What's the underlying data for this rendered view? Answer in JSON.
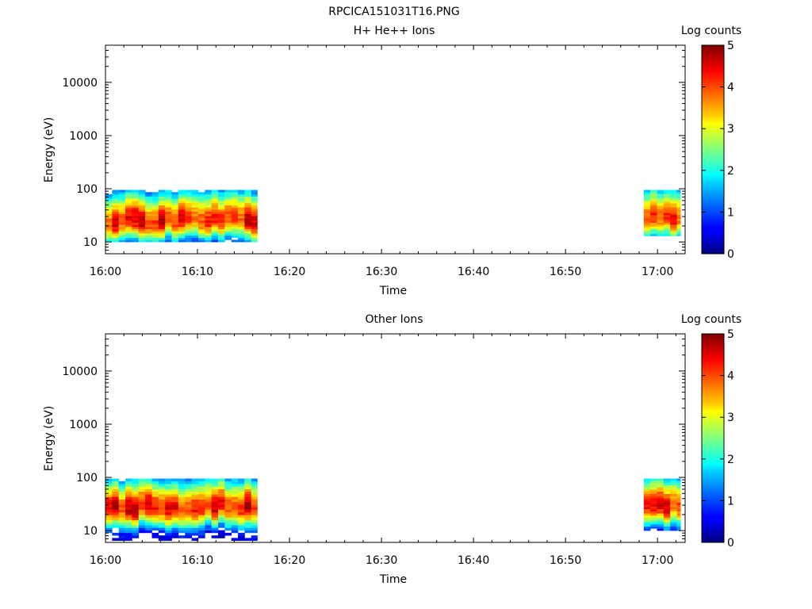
{
  "figure_title": "RPCICA151031T16.PNG",
  "chart_data": [
    {
      "type": "heatmap",
      "title": "H+ He++ Ions",
      "xlabel": "Time",
      "ylabel": "Energy (eV)",
      "y_scale": "log",
      "ylim": [
        6,
        50000
      ],
      "xlim": [
        "16:00",
        "17:03"
      ],
      "x_ticks": [
        "16:00",
        "16:10",
        "16:20",
        "16:30",
        "16:40",
        "16:50",
        "17:00"
      ],
      "y_ticks": [
        "10",
        "100",
        "1000",
        "10000"
      ],
      "colorbar": {
        "label": "Log counts",
        "range": [
          0,
          5
        ],
        "ticks": [
          "0",
          "1",
          "2",
          "3",
          "4",
          "5"
        ]
      },
      "grid": false,
      "data_segments": [
        {
          "start": "16:00",
          "end": "16:16.5",
          "energy_range_eV": [
            10,
            95
          ],
          "peak_energy_eV": 25,
          "peak_log_counts": 4.5
        },
        {
          "start": "16:58.5",
          "end": "17:02.5",
          "energy_range_eV": [
            13,
            95
          ],
          "peak_energy_eV": 27,
          "peak_log_counts": 4.3
        }
      ]
    },
    {
      "type": "heatmap",
      "title": "Other Ions",
      "xlabel": "Time",
      "ylabel": "Energy (eV)",
      "y_scale": "log",
      "ylim": [
        6,
        50000
      ],
      "xlim": [
        "16:00",
        "17:03"
      ],
      "x_ticks": [
        "16:00",
        "16:10",
        "16:20",
        "16:30",
        "16:40",
        "16:50",
        "17:00"
      ],
      "y_ticks": [
        "10",
        "100",
        "1000",
        "10000"
      ],
      "colorbar": {
        "label": "Log counts",
        "range": [
          0,
          5
        ],
        "ticks": [
          "0",
          "1",
          "2",
          "3",
          "4",
          "5"
        ]
      },
      "grid": false,
      "data_segments": [
        {
          "start": "16:00",
          "end": "16:16.5",
          "energy_range_eV": [
            6.5,
            95
          ],
          "peak_energy_eV": 28,
          "peak_log_counts": 4.6
        },
        {
          "start": "16:58.5",
          "end": "17:02.5",
          "energy_range_eV": [
            10,
            95
          ],
          "peak_energy_eV": 30,
          "peak_log_counts": 4.4
        }
      ]
    }
  ]
}
